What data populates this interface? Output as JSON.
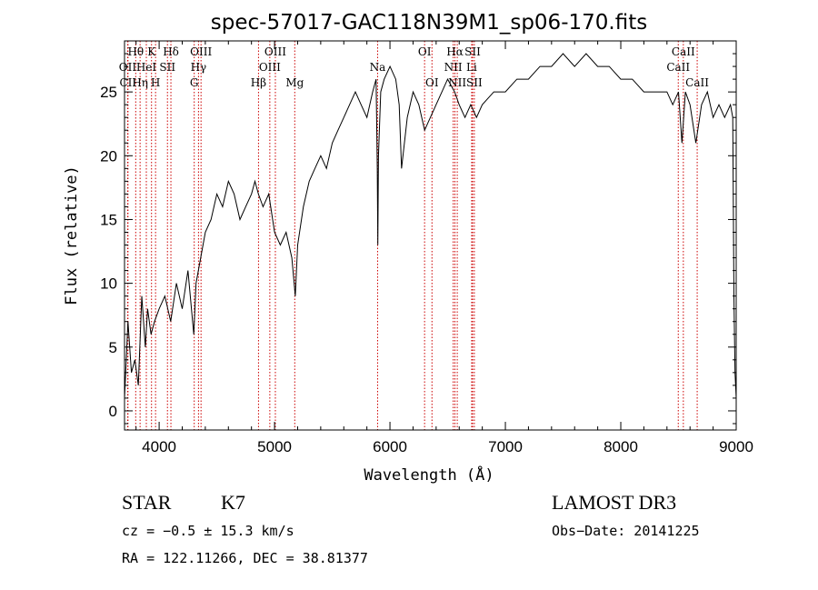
{
  "chart_data": {
    "type": "line",
    "title": "spec-57017-GAC118N39M1_sp06-170.fits",
    "xlabel": "Wavelength (Å)",
    "ylabel": "Flux (relative)",
    "xlim": [
      3700,
      9000
    ],
    "ylim": [
      -1.5,
      29
    ],
    "xticks": [
      4000,
      5000,
      6000,
      7000,
      8000,
      9000
    ],
    "xtick_labels": [
      "4000",
      "5000",
      "6000",
      "7000",
      "8000",
      "9000"
    ],
    "yticks": [
      0,
      5,
      10,
      15,
      20,
      25
    ],
    "ytick_labels": [
      "0",
      "5",
      "10",
      "15",
      "20",
      "25"
    ],
    "series": [
      {
        "name": "flux",
        "x": [
          3700,
          3730,
          3760,
          3790,
          3820,
          3850,
          3880,
          3900,
          3930,
          3960,
          4000,
          4050,
          4100,
          4150,
          4200,
          4250,
          4300,
          4320,
          4360,
          4400,
          4450,
          4500,
          4550,
          4600,
          4650,
          4700,
          4750,
          4800,
          4830,
          4860,
          4900,
          4950,
          5000,
          5050,
          5100,
          5150,
          5180,
          5200,
          5250,
          5300,
          5350,
          5400,
          5450,
          5500,
          5550,
          5600,
          5650,
          5700,
          5750,
          5800,
          5850,
          5880,
          5890,
          5895,
          5900,
          5920,
          5950,
          6000,
          6050,
          6080,
          6100,
          6150,
          6200,
          6250,
          6300,
          6350,
          6400,
          6450,
          6500,
          6560,
          6600,
          6650,
          6700,
          6750,
          6800,
          6900,
          7000,
          7100,
          7200,
          7300,
          7400,
          7500,
          7600,
          7700,
          7800,
          7900,
          8000,
          8100,
          8200,
          8300,
          8400,
          8450,
          8500,
          8530,
          8560,
          8600,
          8650,
          8700,
          8750,
          8800,
          8850,
          8900,
          8950,
          8970,
          8980,
          8990,
          9000
        ],
        "values": [
          1,
          7,
          3,
          4,
          2,
          9,
          5,
          8,
          6,
          7,
          8,
          9,
          7,
          10,
          8,
          11,
          6,
          10,
          12,
          14,
          15,
          17,
          16,
          18,
          17,
          15,
          16,
          17,
          18,
          17,
          16,
          17,
          14,
          13,
          14,
          12,
          9,
          13,
          16,
          18,
          19,
          20,
          19,
          21,
          22,
          23,
          24,
          25,
          24,
          23,
          25,
          26,
          19,
          13,
          20,
          25,
          26,
          27,
          26,
          24,
          19,
          23,
          25,
          24,
          22,
          23,
          24,
          25,
          26,
          25,
          24,
          23,
          24,
          23,
          24,
          25,
          25,
          26,
          26,
          27,
          27,
          28,
          27,
          28,
          27,
          27,
          26,
          26,
          25,
          25,
          25,
          24,
          25,
          21,
          25,
          24,
          21,
          24,
          25,
          23,
          24,
          23,
          24,
          23,
          9,
          3,
          1
        ]
      }
    ],
    "spectral_lines": [
      {
        "label": "Hθ",
        "wavelength": 3797,
        "row": 0
      },
      {
        "label": "OII",
        "wavelength": 3727,
        "row": 1
      },
      {
        "label": "CII",
        "wavelength": 3730,
        "row": 2
      },
      {
        "label": "K",
        "wavelength": 3934,
        "row": 0
      },
      {
        "label": "HeI",
        "wavelength": 3889,
        "row": 1
      },
      {
        "label": "Hη",
        "wavelength": 3835,
        "row": 2
      },
      {
        "label": "H",
        "wavelength": 3969,
        "row": 2
      },
      {
        "label": "Hδ",
        "wavelength": 4102,
        "row": 0
      },
      {
        "label": "SII",
        "wavelength": 4072,
        "row": 1
      },
      {
        "label": "OIII",
        "wavelength": 4363,
        "row": 0
      },
      {
        "label": "Hγ",
        "wavelength": 4341,
        "row": 1
      },
      {
        "label": "G",
        "wavelength": 4304,
        "row": 2
      },
      {
        "label": "OIII",
        "wavelength": 5007,
        "row": 0
      },
      {
        "label": "OIII",
        "wavelength": 4959,
        "row": 1
      },
      {
        "label": "Hβ",
        "wavelength": 4861,
        "row": 2
      },
      {
        "label": "Mg",
        "wavelength": 5175,
        "row": 2
      },
      {
        "label": "Na",
        "wavelength": 5893,
        "row": 1
      },
      {
        "label": "OI",
        "wavelength": 6300,
        "row": 0
      },
      {
        "label": "OI",
        "wavelength": 6364,
        "row": 2
      },
      {
        "label": "Hα",
        "wavelength": 6563,
        "row": 0
      },
      {
        "label": "SII",
        "wavelength": 6716,
        "row": 0
      },
      {
        "label": "NII",
        "wavelength": 6548,
        "row": 1
      },
      {
        "label": "Li",
        "wavelength": 6708,
        "row": 1
      },
      {
        "label": "NII",
        "wavelength": 6583,
        "row": 2
      },
      {
        "label": "SII",
        "wavelength": 6731,
        "row": 2
      },
      {
        "label": "CaII",
        "wavelength": 8542,
        "row": 0
      },
      {
        "label": "CaII",
        "wavelength": 8498,
        "row": 1
      },
      {
        "label": "CaII",
        "wavelength": 8662,
        "row": 2
      }
    ]
  },
  "info": {
    "object_class": "STAR",
    "subclass": "K7",
    "survey": "LAMOST DR3",
    "redshift": "cz = −0.5 ± 15.3 km/s",
    "obs_date": "Obs−Date: 20141225",
    "coordinates": "RA = 122.11266, DEC =  38.81377"
  },
  "colors": {
    "spectrum": "#000000",
    "line_marker": "#cc0000",
    "axes": "#000000"
  }
}
